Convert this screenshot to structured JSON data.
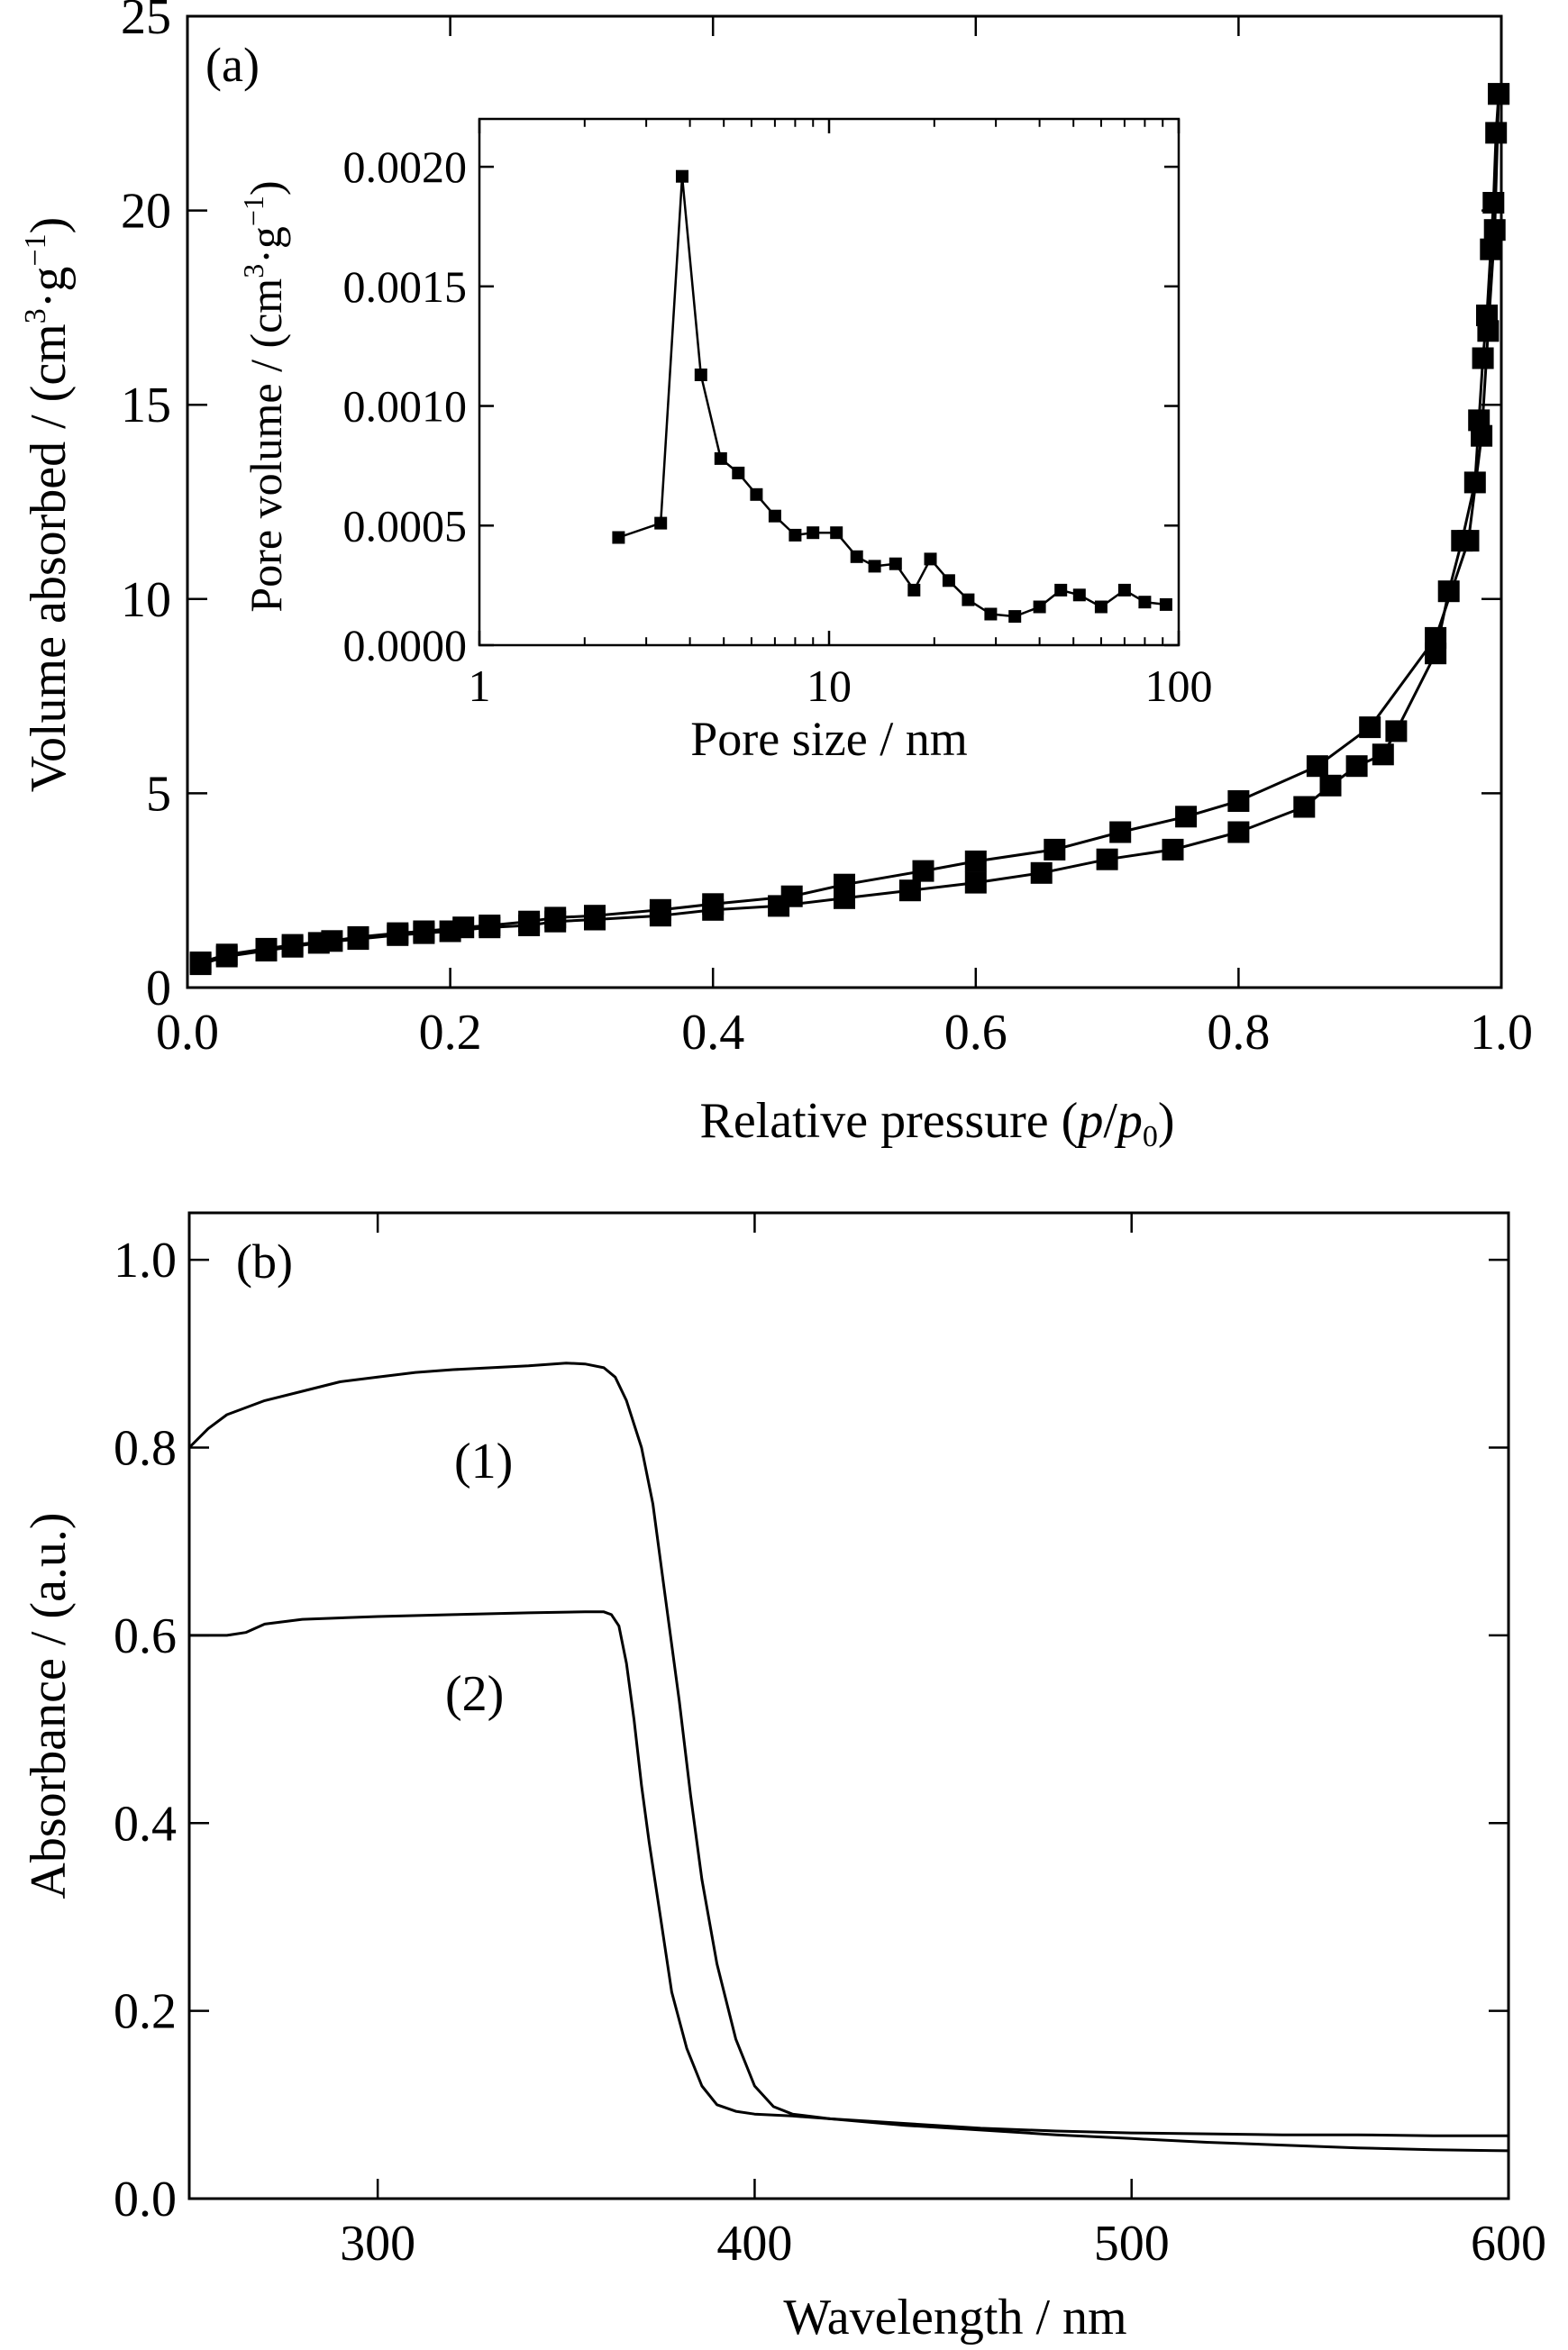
{
  "chart_data": [
    {
      "id": "a",
      "type": "line",
      "panel_label": "(a)",
      "xlabel_parts": [
        "Relative pressure (",
        "p",
        "/",
        "p",
        "0",
        ")"
      ],
      "ylabel_parts": [
        "Volume absorbed / (cm",
        "3",
        "·g",
        "−1",
        ")"
      ],
      "xlim": [
        0.0,
        1.0
      ],
      "ylim": [
        0,
        25
      ],
      "xticks": [
        0.0,
        0.2,
        0.4,
        0.6,
        0.8,
        1.0
      ],
      "xtick_labels": [
        "0.0",
        "0.2",
        "0.4",
        "0.6",
        "0.8",
        "1.0"
      ],
      "yticks": [
        0,
        5,
        10,
        15,
        20,
        25
      ],
      "ytick_labels": [
        "0",
        "5",
        "10",
        "15",
        "20",
        "25"
      ],
      "marker": "filled-square",
      "series": [
        {
          "x": [
            0.01,
            0.03,
            0.06,
            0.08,
            0.1,
            0.13,
            0.16,
            0.18,
            0.2,
            0.23,
            0.26,
            0.28,
            0.31,
            0.36,
            0.4,
            0.45,
            0.5,
            0.55,
            0.6,
            0.65,
            0.7,
            0.75,
            0.8,
            0.85,
            0.87,
            0.89,
            0.91,
            0.92,
            0.95,
            0.96,
            0.97,
            0.98,
            0.983,
            0.986,
            0.989,
            0.992,
            0.994,
            0.996,
            0.998
          ],
          "y": [
            0.6,
            0.8,
            0.95,
            1.05,
            1.15,
            1.25,
            1.35,
            1.4,
            1.45,
            1.55,
            1.6,
            1.7,
            1.75,
            1.85,
            2.0,
            2.1,
            2.3,
            2.5,
            2.7,
            2.95,
            3.3,
            3.55,
            4.0,
            4.65,
            5.2,
            5.7,
            6.0,
            6.6,
            8.6,
            10.2,
            11.5,
            13.0,
            14.6,
            16.2,
            17.3,
            19.0,
            20.2,
            22.0,
            23.0
          ]
        },
        {
          "x": [
            0.01,
            0.03,
            0.06,
            0.08,
            0.11,
            0.13,
            0.16,
            0.18,
            0.21,
            0.23,
            0.26,
            0.28,
            0.31,
            0.36,
            0.4,
            0.46,
            0.5,
            0.56,
            0.6,
            0.66,
            0.71,
            0.76,
            0.8,
            0.86,
            0.9,
            0.95,
            0.975,
            0.985,
            0.99,
            0.995,
            0.998
          ],
          "y": [
            0.65,
            0.85,
            1.0,
            1.1,
            1.2,
            1.3,
            1.4,
            1.45,
            1.55,
            1.6,
            1.7,
            1.8,
            1.85,
            2.0,
            2.15,
            2.35,
            2.65,
            3.0,
            3.25,
            3.55,
            4.0,
            4.4,
            4.8,
            5.7,
            6.7,
            9.0,
            11.5,
            14.2,
            16.9,
            19.5,
            23.0
          ]
        }
      ]
    },
    {
      "id": "a-inset",
      "type": "line",
      "xlabel": "Pore size / nm",
      "ylabel_parts": [
        "Pore volume / (cm",
        "3",
        "·g",
        "−1",
        ")"
      ],
      "xscale": "log",
      "xlim": [
        1,
        100
      ],
      "ylim": [
        0,
        0.0022
      ],
      "xticks": [
        1,
        10,
        100
      ],
      "xtick_labels": [
        "1",
        "10",
        "100"
      ],
      "yticks": [
        0.0,
        0.0005,
        0.001,
        0.0015,
        0.002
      ],
      "ytick_labels": [
        "0.0000",
        "0.0005",
        "0.0010",
        "0.0015",
        "0.0020"
      ],
      "marker": "filled-square",
      "series": [
        {
          "x": [
            2.5,
            3.3,
            3.8,
            4.3,
            4.9,
            5.5,
            6.2,
            7.0,
            8.0,
            9.0,
            10.5,
            12.0,
            13.5,
            15.5,
            17.5,
            19.5,
            22.0,
            25.0,
            29.0,
            34.0,
            40.0,
            46.0,
            52.0,
            60.0,
            70.0,
            80.0,
            92.0
          ],
          "y": [
            0.00045,
            0.00051,
            0.00196,
            0.00113,
            0.00078,
            0.00072,
            0.00063,
            0.00054,
            0.00046,
            0.00047,
            0.00047,
            0.00037,
            0.00033,
            0.00034,
            0.00023,
            0.00036,
            0.00027,
            0.00019,
            0.00013,
            0.00012,
            0.00016,
            0.00023,
            0.00021,
            0.00016,
            0.00023,
            0.00018,
            0.00017
          ]
        }
      ]
    },
    {
      "id": "b",
      "type": "line",
      "panel_label": "(b)",
      "xlabel": "Wavelength / nm",
      "ylabel": "Absorbance / (a.u.)",
      "xlim": [
        250,
        600
      ],
      "ylim": [
        0.0,
        1.05
      ],
      "xticks": [
        300,
        400,
        500,
        600
      ],
      "xtick_labels": [
        "300",
        "400",
        "500",
        "600"
      ],
      "yticks": [
        0.0,
        0.2,
        0.4,
        0.6,
        0.8,
        1.0
      ],
      "ytick_labels": [
        "0.0",
        "0.2",
        "0.4",
        "0.6",
        "0.8",
        "1.0"
      ],
      "series": [
        {
          "name": "(1)",
          "x": [
            250,
            255,
            260,
            270,
            280,
            290,
            300,
            310,
            320,
            330,
            340,
            350,
            355,
            360,
            363,
            366,
            370,
            373,
            376,
            380,
            383,
            386,
            390,
            395,
            400,
            405,
            410,
            420,
            440,
            460,
            480,
            500,
            520,
            540,
            560,
            580,
            600
          ],
          "y": [
            0.8,
            0.82,
            0.835,
            0.85,
            0.86,
            0.87,
            0.875,
            0.88,
            0.883,
            0.885,
            0.887,
            0.89,
            0.889,
            0.885,
            0.875,
            0.85,
            0.8,
            0.74,
            0.65,
            0.53,
            0.43,
            0.34,
            0.25,
            0.17,
            0.12,
            0.098,
            0.09,
            0.085,
            0.08,
            0.075,
            0.072,
            0.07,
            0.069,
            0.068,
            0.068,
            0.067,
            0.067
          ]
        },
        {
          "name": "(2)",
          "x": [
            250,
            260,
            265,
            270,
            280,
            300,
            320,
            340,
            355,
            360,
            362,
            364,
            366,
            368,
            370,
            372,
            375,
            378,
            382,
            386,
            390,
            395,
            400,
            410,
            420,
            440,
            460,
            480,
            500,
            520,
            540,
            560,
            580,
            600
          ],
          "y": [
            0.6,
            0.6,
            0.603,
            0.612,
            0.617,
            0.62,
            0.622,
            0.624,
            0.625,
            0.625,
            0.622,
            0.61,
            0.57,
            0.51,
            0.44,
            0.38,
            0.3,
            0.22,
            0.16,
            0.12,
            0.1,
            0.093,
            0.09,
            0.088,
            0.085,
            0.078,
            0.073,
            0.068,
            0.064,
            0.06,
            0.057,
            0.054,
            0.052,
            0.051
          ]
        }
      ]
    }
  ]
}
